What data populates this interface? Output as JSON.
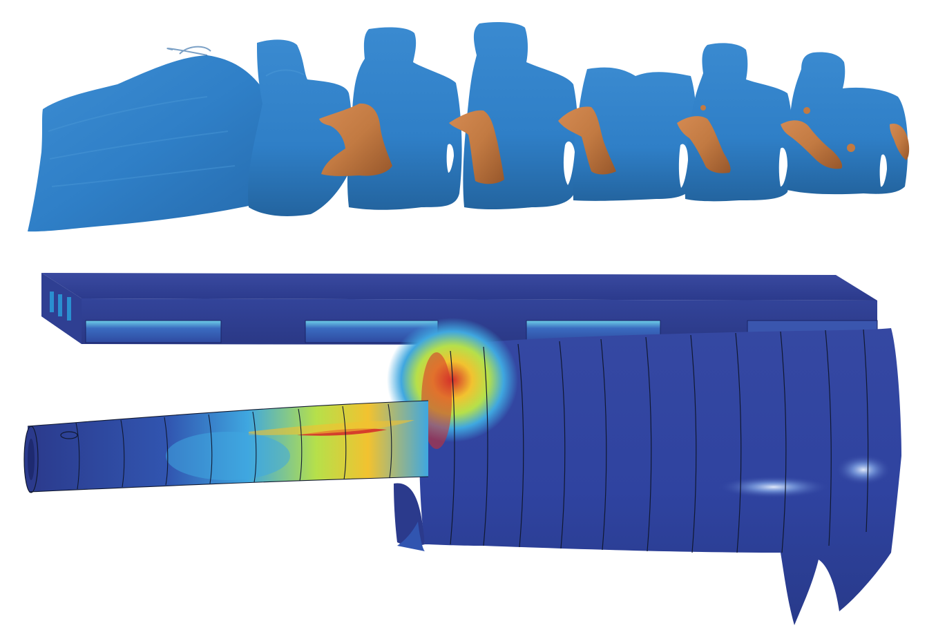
{
  "image": {
    "panels": [
      {
        "id": "anatomy",
        "content": "lumbar-spine-segmentation-3d-model"
      },
      {
        "id": "simulation",
        "content": "finite-element-field-contour-plot"
      }
    ]
  },
  "colors": {
    "background": "#ffffff",
    "bone": "#2f7fc7",
    "bone_shadow": "#1f5f9f",
    "bone_highlight": "#4b9ad8",
    "nerve": "#c27a42",
    "nerve_shadow": "#8f5228",
    "field_low": "#2b3a8c",
    "field_mid_low": "#3fa7e0",
    "field_mid": "#b6e04a",
    "field_mid_high": "#f2c230",
    "field_high": "#d4302a",
    "mesh_line": "#101830"
  },
  "icons": [
    "vertebra-icon",
    "nerve-root-icon",
    "duct-mesh-icon"
  ]
}
